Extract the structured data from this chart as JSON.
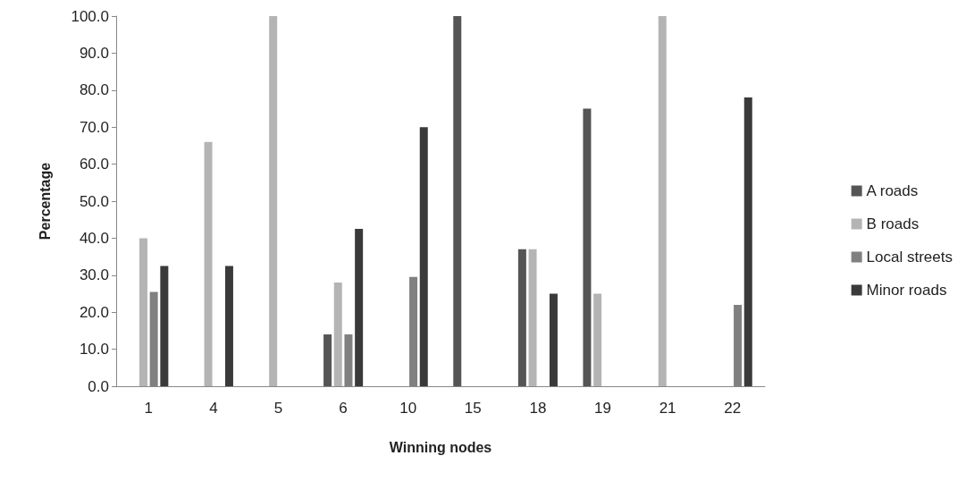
{
  "chart_data": {
    "type": "bar",
    "xlabel": "Winning nodes",
    "ylabel": "Percentage",
    "categories": [
      "1",
      "4",
      "5",
      "6",
      "10",
      "15",
      "18",
      "19",
      "21",
      "22"
    ],
    "series": [
      {
        "name": "A roads",
        "color": "#555555",
        "values": [
          0,
          0,
          0,
          14,
          0,
          100,
          37,
          75,
          0,
          0
        ]
      },
      {
        "name": "B roads",
        "color": "#b4b4b4",
        "values": [
          40,
          66,
          100,
          28,
          0,
          0,
          37,
          25,
          100,
          0
        ]
      },
      {
        "name": "Local streets",
        "color": "#808080",
        "values": [
          25.5,
          0,
          0,
          14,
          29.5,
          0,
          0,
          0,
          0,
          22
        ]
      },
      {
        "name": "Minor roads",
        "color": "#3a3a3a",
        "values": [
          32.5,
          32.5,
          0,
          42.5,
          70,
          0,
          25,
          0,
          0,
          78
        ]
      }
    ],
    "ylim": [
      0,
      100
    ],
    "yticks": [
      {
        "value": 0,
        "label": "0.0"
      },
      {
        "value": 10,
        "label": "10.0"
      },
      {
        "value": 20,
        "label": "20.0"
      },
      {
        "value": 30,
        "label": "30.0"
      },
      {
        "value": 40,
        "label": "40.0"
      },
      {
        "value": 50,
        "label": "50.0"
      },
      {
        "value": 60,
        "label": "60.0"
      },
      {
        "value": 70,
        "label": "70.0"
      },
      {
        "value": 80,
        "label": "80.0"
      },
      {
        "value": 90,
        "label": "90.0"
      },
      {
        "value": 100,
        "label": "100.0"
      }
    ],
    "grid": false,
    "legend": "right"
  }
}
